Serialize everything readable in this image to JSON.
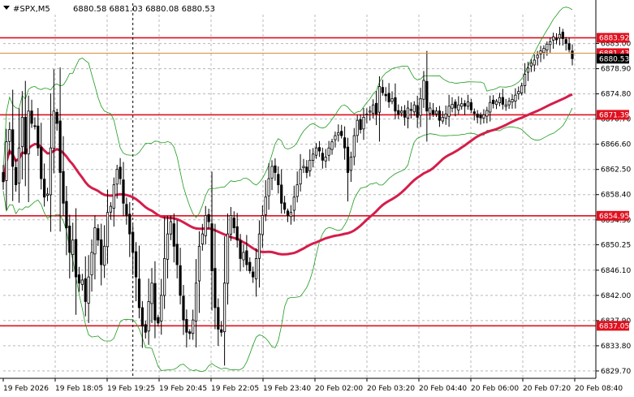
{
  "header": {
    "symbol": "#SPX,M5",
    "ohlc": "6880.58 6881.03 6880.08 6880.53"
  },
  "colors": {
    "candle": "#000000",
    "level": "#e0101e",
    "ma": "#d41e4a",
    "band": "#1e9a1e",
    "grid": "#b8b8b8",
    "bid": "#000000",
    "ask_line": "#e08a3c"
  },
  "chart_data": {
    "type": "candlestick",
    "symbol": "#SPX",
    "timeframe": "M5",
    "ylim": [
      6828.5,
      6887.7
    ],
    "y_ticks": [
      6883.0,
      6878.9,
      6874.8,
      6870.7,
      6866.6,
      6862.5,
      6858.4,
      6854.3,
      6850.25,
      6846.1,
      6842.0,
      6837.9,
      6833.8,
      6829.7
    ],
    "x_ticks": [
      "19 Feb 2026",
      "19 Feb 18:05",
      "19 Feb 19:25",
      "19 Feb 20:45",
      "19 Feb 22:05",
      "19 Feb 23:40",
      "20 Feb 02:00",
      "20 Feb 03:20",
      "20 Feb 04:40",
      "20 Feb 06:00",
      "20 Feb 07:20",
      "20 Feb 08:40"
    ],
    "levels": [
      {
        "label": "6883.92",
        "value": 6883.92
      },
      {
        "label": "6871.39",
        "value": 6871.39
      },
      {
        "label": "6854.95",
        "value": 6854.95
      },
      {
        "label": "6837.05",
        "value": 6837.05
      }
    ],
    "current_price": {
      "label": "6880.53",
      "value": 6880.53
    },
    "ask_price": {
      "label": "6881.43",
      "value": 6881.43
    },
    "session_separator_index": 41,
    "close": [
      6860.5,
      6867.0,
      6869.0,
      6863.0,
      6860.0,
      6866.0,
      6871.0,
      6865.0,
      6872.0,
      6870.0,
      6869.5,
      6866.0,
      6861.0,
      6858.0,
      6858.5,
      6866.0,
      6872.0,
      6870.0,
      6862.0,
      6857.0,
      6853.0,
      6849.0,
      6851.0,
      6845.0,
      6844.0,
      6844.5,
      6841.0,
      6845.0,
      6849.0,
      6853.0,
      6851.0,
      6847.0,
      6850.0,
      6855.5,
      6856.5,
      6860.0,
      6862.5,
      6861.0,
      6857.0,
      6855.0,
      6852.0,
      6849.0,
      6845.0,
      6840.0,
      6837.0,
      6836.0,
      6841.0,
      6844.0,
      6838.0,
      6837.5,
      6842.0,
      6848.0,
      6852.0,
      6854.0,
      6850.0,
      6847.0,
      6842.0,
      6838.0,
      6836.0,
      6835.8,
      6838.0,
      6844.0,
      6850.0,
      6852.0,
      6855.0,
      6854.0,
      6846.0,
      6840.0,
      6836.5,
      6836.0,
      6844.0,
      6852.0,
      6855.0,
      6853.0,
      6851.0,
      6848.0,
      6849.0,
      6847.0,
      6846.0,
      6845.0,
      6848.0,
      6852.0,
      6855.0,
      6858.0,
      6861.0,
      6863.0,
      6862.0,
      6860.0,
      6857.0,
      6856.0,
      6855.0,
      6855.5,
      6858.0,
      6860.0,
      6862.5,
      6863.0,
      6862.0,
      6864.0,
      6865.0,
      6866.0,
      6865.5,
      6864.0,
      6864.5,
      6866.0,
      6867.0,
      6868.0,
      6868.5,
      6868.0,
      6866.0,
      6862.0,
      6864.5,
      6868.0,
      6870.5,
      6869.0,
      6871.0,
      6871.5,
      6872.0,
      6873.0,
      6871.5,
      6876.0,
      6875.0,
      6874.5,
      6873.5,
      6874.0,
      6872.0,
      6871.5,
      6872.0,
      6871.0,
      6872.5,
      6872.2,
      6873.0,
      6871.0,
      6874.0,
      6877.0,
      6872.0,
      6872.5,
      6871.5,
      6872.0,
      6870.5,
      6871.0,
      6871.5,
      6872.8,
      6873.1,
      6872.5,
      6873.0,
      6873.2,
      6872.8,
      6873.5,
      6872.2,
      6871.6,
      6871.0,
      6870.9,
      6871.4,
      6872.1,
      6873.4,
      6873.2,
      6873.6,
      6874.2,
      6873.1,
      6873.0,
      6873.6,
      6873.9,
      6874.6,
      6875.2,
      6876.1,
      6878.0,
      6879.0,
      6879.8,
      6880.3,
      6881.1,
      6881.8,
      6882.2,
      6882.9,
      6883.3,
      6884.1,
      6883.6,
      6884.5,
      6883.8,
      6883.0,
      6882.0,
      6880.53
    ]
  }
}
